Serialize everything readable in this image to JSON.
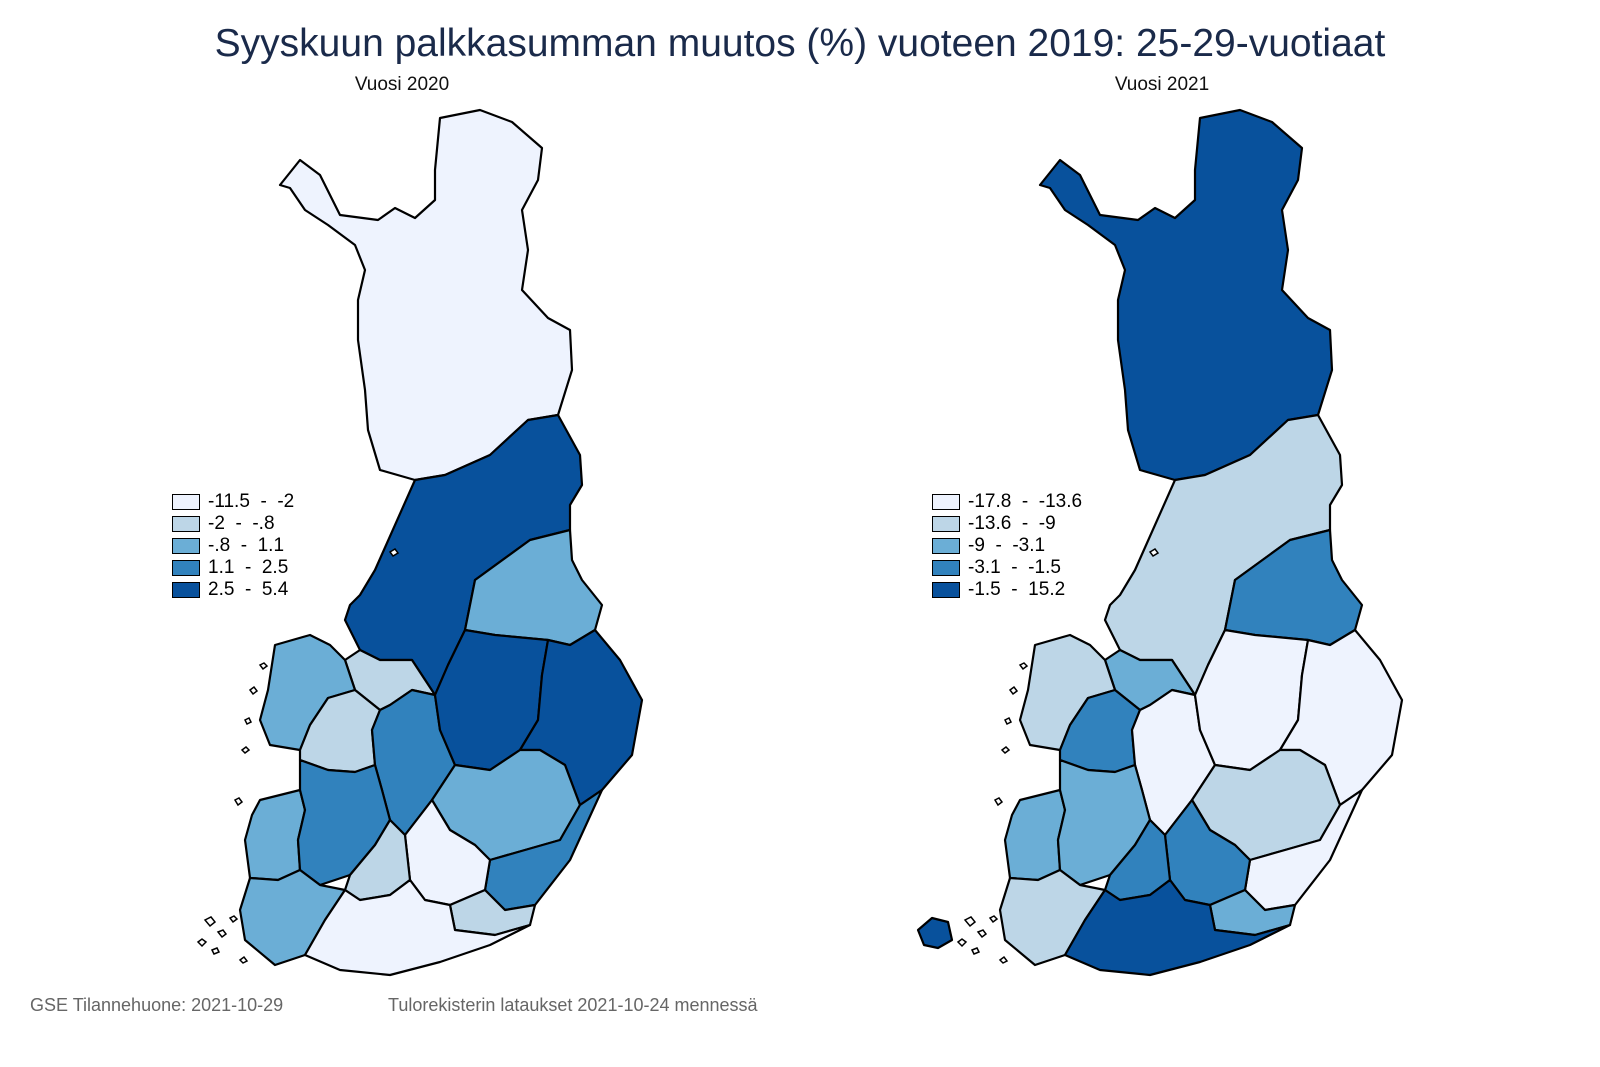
{
  "title": "Syyskuun palkkasumman muutos (%) vuoteen 2019: 25-29-vuotiaat",
  "palette": [
    "#eef3fe",
    "#bdd6e7",
    "#6baed6",
    "#3182bd",
    "#08519c"
  ],
  "maps": [
    {
      "subtitle": "Vuosi 2020",
      "legend": [
        {
          "label": "-11.5  -  -2",
          "color": "#eef3fe"
        },
        {
          "label": "-2  -  -.8",
          "color": "#bdd6e7"
        },
        {
          "label": "-.8  -  1.1",
          "color": "#6baed6"
        },
        {
          "label": "1.1  -  2.5",
          "color": "#3182bd"
        },
        {
          "label": "2.5  -  5.4",
          "color": "#08519c"
        }
      ],
      "regions": [
        {
          "region": "lapland",
          "class": 0
        },
        {
          "region": "north-ostrobothnia",
          "class": 4
        },
        {
          "region": "kainuu",
          "class": 2
        },
        {
          "region": "central-ostrobothnia",
          "class": 1
        },
        {
          "region": "ostrobothnia",
          "class": 2
        },
        {
          "region": "south-ostrobothnia",
          "class": 1
        },
        {
          "region": "central-finland",
          "class": 3
        },
        {
          "region": "north-savo",
          "class": 4
        },
        {
          "region": "north-karelia",
          "class": 4
        },
        {
          "region": "satakunta",
          "class": 2
        },
        {
          "region": "pirkanmaa",
          "class": 3
        },
        {
          "region": "south-savo",
          "class": 2
        },
        {
          "region": "south-karelia",
          "class": 3
        },
        {
          "region": "paijat-hame",
          "class": 0
        },
        {
          "region": "kanta-hame",
          "class": 1
        },
        {
          "region": "kymenlaakso",
          "class": 1
        },
        {
          "region": "southwest-finland",
          "class": 2
        },
        {
          "region": "uusimaa",
          "class": 0
        }
      ]
    },
    {
      "subtitle": "Vuosi 2021",
      "legend": [
        {
          "label": "-17.8  -  -13.6",
          "color": "#eef3fe"
        },
        {
          "label": "-13.6  -  -9",
          "color": "#bdd6e7"
        },
        {
          "label": "-9  -  -3.1",
          "color": "#6baed6"
        },
        {
          "label": "-3.1  -  -1.5",
          "color": "#3182bd"
        },
        {
          "label": "-1.5  -  15.2",
          "color": "#08519c"
        }
      ],
      "regions": [
        {
          "region": "lapland",
          "class": 4
        },
        {
          "region": "north-ostrobothnia",
          "class": 1
        },
        {
          "region": "kainuu",
          "class": 3
        },
        {
          "region": "central-ostrobothnia",
          "class": 2
        },
        {
          "region": "ostrobothnia",
          "class": 1
        },
        {
          "region": "south-ostrobothnia",
          "class": 3
        },
        {
          "region": "central-finland",
          "class": 0
        },
        {
          "region": "north-savo",
          "class": 0
        },
        {
          "region": "north-karelia",
          "class": 0
        },
        {
          "region": "satakunta",
          "class": 2
        },
        {
          "region": "pirkanmaa",
          "class": 2
        },
        {
          "region": "south-savo",
          "class": 1
        },
        {
          "region": "south-karelia",
          "class": 0
        },
        {
          "region": "paijat-hame",
          "class": 3
        },
        {
          "region": "kanta-hame",
          "class": 3
        },
        {
          "region": "kymenlaakso",
          "class": 2
        },
        {
          "region": "southwest-finland",
          "class": 1
        },
        {
          "region": "uusimaa",
          "class": 4
        },
        {
          "region": "aland",
          "class": 4
        }
      ]
    }
  ],
  "footer": {
    "left": "GSE Tilannehuone: 2021-10-29",
    "right": "Tulorekisterin lataukset 2021-10-24 mennessä"
  }
}
